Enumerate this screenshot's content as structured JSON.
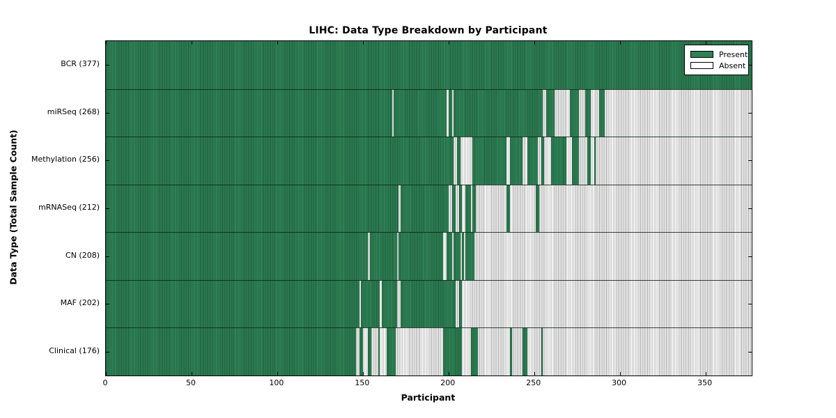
{
  "title": "LIHC: Data Type Breakdown by Participant",
  "legend": {
    "present_label": "Present",
    "absent_label": "Absent"
  },
  "colors": {
    "present_fill": "#2f8155",
    "present_edge": "#1d5c3a",
    "absent_fill": "#f3f3f3",
    "absent_edge": "#a8a8a8",
    "frame": "#000000"
  },
  "chart_data": {
    "type": "heatmap",
    "title": "LIHC: Data Type Breakdown by Participant",
    "xlabel": "Participant",
    "ylabel": "Data Type (Total Sample Count)",
    "xlim": [
      0,
      377
    ],
    "x_ticks": [
      0,
      50,
      100,
      150,
      200,
      250,
      300,
      350
    ],
    "grid": false,
    "legend_position": "upper right",
    "legend_entries": [
      "Present",
      "Absent"
    ],
    "cell_states": [
      "present",
      "absent"
    ],
    "rows": [
      {
        "label": "BCR (377)",
        "name": "BCR",
        "total": 377,
        "present_runs": [
          [
            0,
            377
          ]
        ]
      },
      {
        "label": "miRSeq (268)",
        "name": "miRSeq",
        "total": 268,
        "present_runs": [
          [
            0,
            167
          ],
          [
            168,
            199
          ],
          [
            200,
            202
          ],
          [
            203,
            255
          ],
          [
            257,
            262
          ],
          [
            271,
            276
          ],
          [
            280,
            283
          ],
          [
            288,
            291
          ]
        ]
      },
      {
        "label": "Methylation (256)",
        "name": "Methylation",
        "total": 256,
        "present_runs": [
          [
            0,
            203
          ],
          [
            205,
            207
          ],
          [
            214,
            234
          ],
          [
            236,
            243
          ],
          [
            246,
            252
          ],
          [
            254,
            256
          ],
          [
            260,
            269
          ],
          [
            272,
            276
          ],
          [
            281,
            283
          ],
          [
            285,
            286
          ]
        ]
      },
      {
        "label": "mRNASeq (212)",
        "name": "mRNASeq",
        "total": 212,
        "present_runs": [
          [
            0,
            171
          ],
          [
            172,
            200
          ],
          [
            202,
            204
          ],
          [
            206,
            208
          ],
          [
            210,
            213
          ],
          [
            214,
            216
          ],
          [
            234,
            236
          ],
          [
            251,
            253
          ]
        ]
      },
      {
        "label": "CN (208)",
        "name": "CN",
        "total": 208,
        "present_runs": [
          [
            0,
            153
          ],
          [
            154,
            170
          ],
          [
            171,
            197
          ],
          [
            199,
            202
          ],
          [
            203,
            207
          ],
          [
            208,
            209
          ],
          [
            210,
            215
          ]
        ]
      },
      {
        "label": "MAF (202)",
        "name": "MAF",
        "total": 202,
        "present_runs": [
          [
            0,
            148
          ],
          [
            149,
            160
          ],
          [
            161,
            170
          ],
          [
            172,
            204
          ],
          [
            206,
            208
          ]
        ]
      },
      {
        "label": "Clinical (176)",
        "name": "Clinical",
        "total": 176,
        "present_runs": [
          [
            0,
            146
          ],
          [
            148,
            150
          ],
          [
            153,
            155
          ],
          [
            159,
            160
          ],
          [
            164,
            169
          ],
          [
            197,
            208
          ],
          [
            213,
            217
          ],
          [
            236,
            237
          ],
          [
            243,
            246
          ],
          [
            254,
            255
          ]
        ]
      }
    ]
  }
}
